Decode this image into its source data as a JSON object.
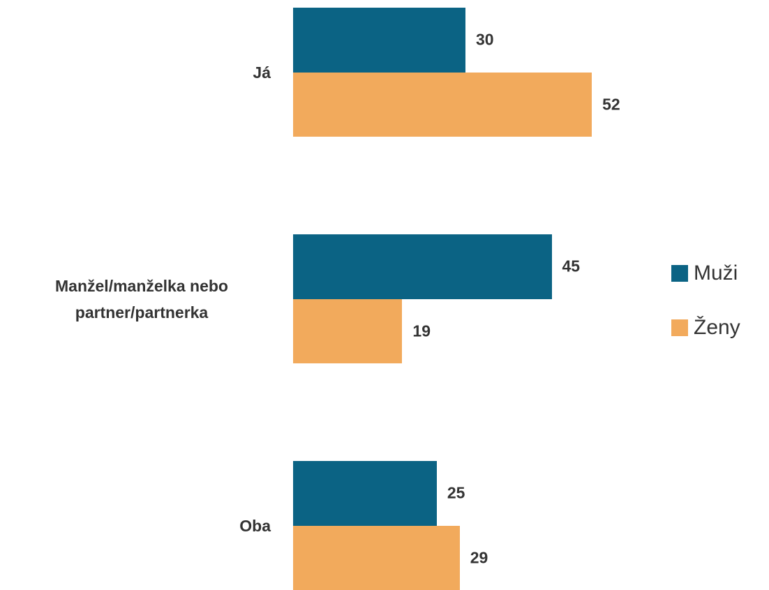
{
  "chart_data": {
    "type": "bar",
    "orientation": "horizontal",
    "categories": [
      "Já",
      "Manžel/manželka nebo partner/partnerka",
      "Oba"
    ],
    "series": [
      {
        "name": "Muži",
        "color": "#0b6384",
        "values": [
          30,
          45,
          25
        ]
      },
      {
        "name": "Ženy",
        "color": "#f2aa5c",
        "values": [
          52,
          19,
          29
        ]
      }
    ],
    "xlim": [
      0,
      60
    ],
    "legend": "right"
  }
}
